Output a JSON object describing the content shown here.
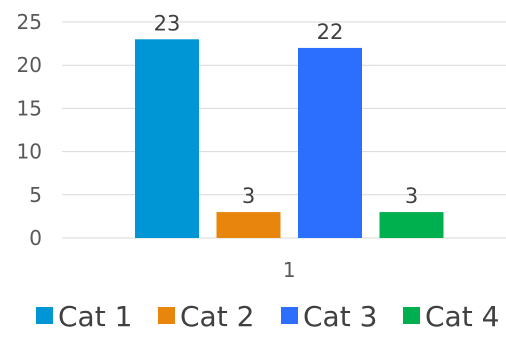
{
  "chart_data": {
    "type": "bar",
    "categories": [
      "1"
    ],
    "series": [
      {
        "name": "Cat 1",
        "values": [
          23
        ],
        "color": "#0096D6"
      },
      {
        "name": "Cat 2",
        "values": [
          3
        ],
        "color": "#E8850C"
      },
      {
        "name": "Cat 3",
        "values": [
          22
        ],
        "color": "#2C6FFF"
      },
      {
        "name": "Cat 4",
        "values": [
          3
        ],
        "color": "#00B04F"
      }
    ],
    "yticks": [
      "0",
      "5",
      "10",
      "15",
      "20",
      "25"
    ],
    "ylim": [
      0,
      25
    ],
    "grid": true,
    "legend_position": "bottom",
    "data_labels": true
  }
}
